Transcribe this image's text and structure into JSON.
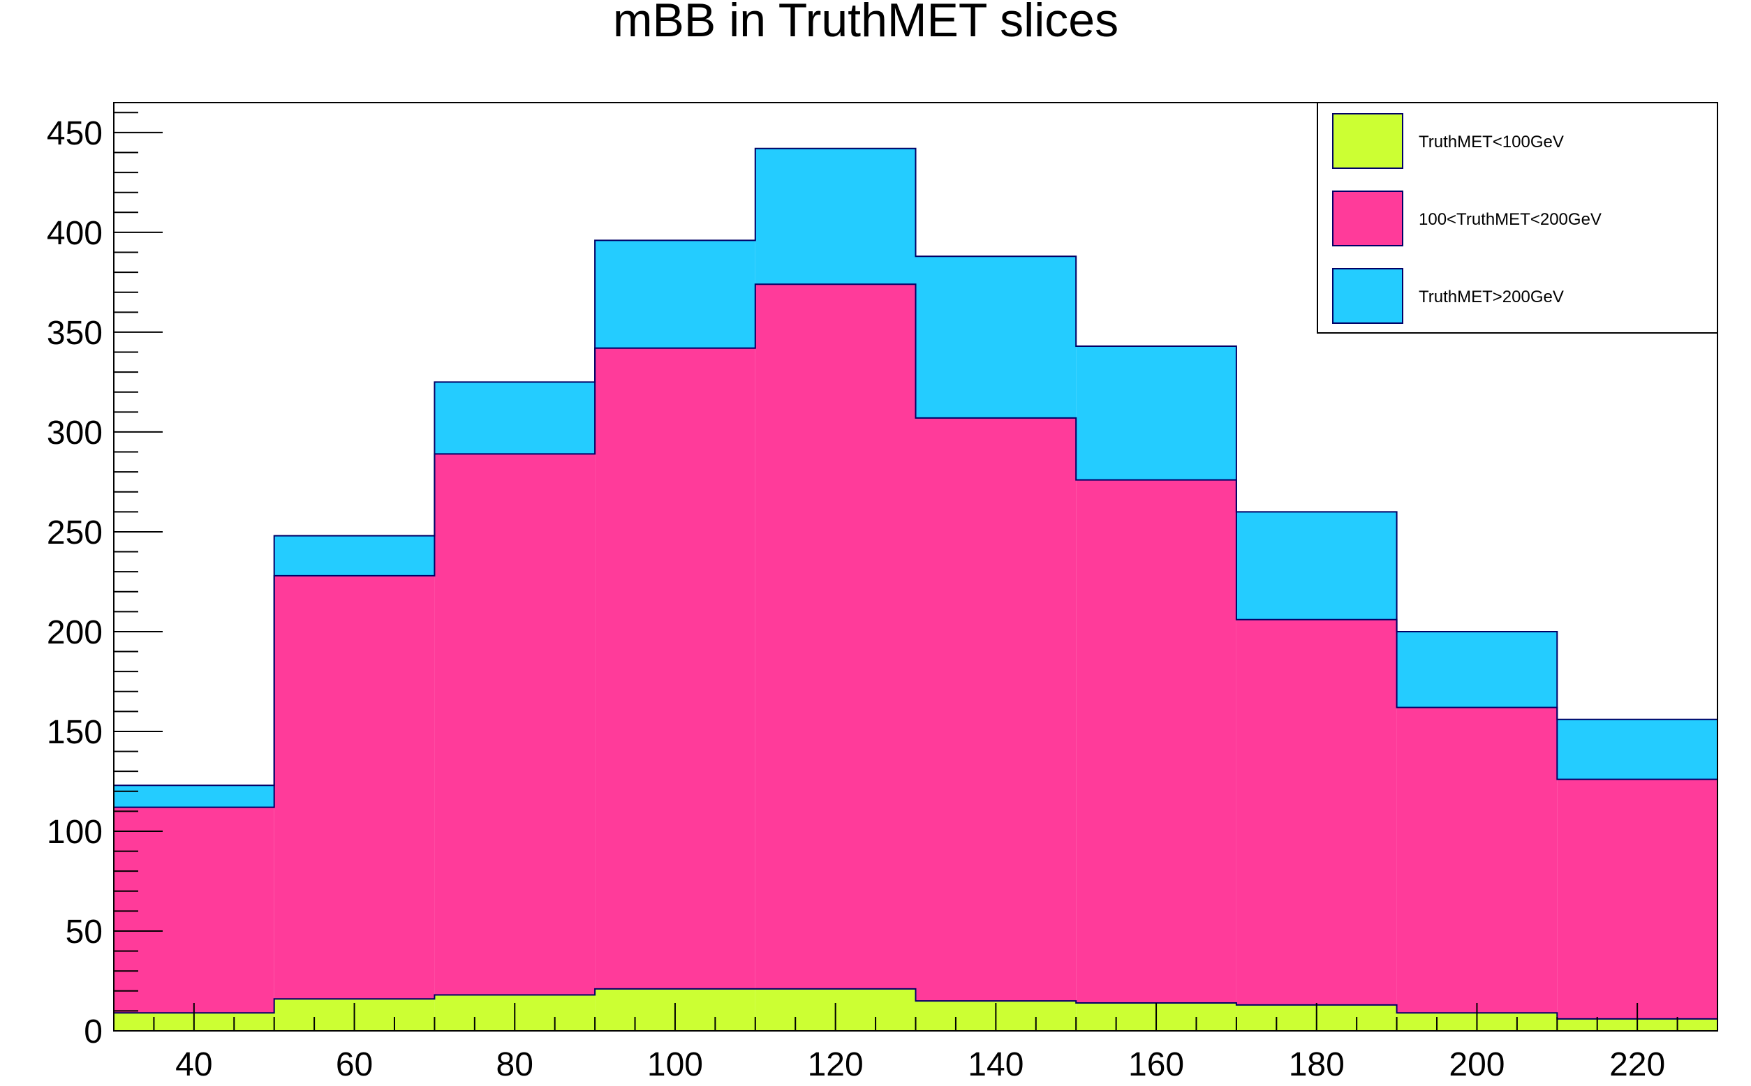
{
  "chart_data": {
    "type": "bar",
    "stacked": true,
    "title": "mBB in TruthMET slices",
    "xlabel": "",
    "ylabel": "",
    "bin_edges": [
      30,
      50,
      70,
      90,
      110,
      130,
      150,
      170,
      190,
      210,
      230
    ],
    "xlim": [
      30,
      230
    ],
    "ylim": [
      0,
      465
    ],
    "x_ticks": [
      40,
      60,
      80,
      100,
      120,
      140,
      160,
      180,
      200,
      220
    ],
    "y_ticks": [
      0,
      50,
      100,
      150,
      200,
      250,
      300,
      350,
      400,
      450
    ],
    "grid": false,
    "legend_position": "top-right",
    "series": [
      {
        "name": "TruthMET<100GeV",
        "color": "#ccff33",
        "values": [
          9,
          16,
          18,
          21,
          21,
          15,
          14,
          13,
          9,
          6
        ]
      },
      {
        "name": "100<TruthMET<200GeV",
        "color": "#ff3b9a",
        "values": [
          103,
          212,
          271,
          321,
          353,
          292,
          262,
          193,
          153,
          120
        ]
      },
      {
        "name": "TruthMET>200GeV",
        "color": "#24ccff",
        "values": [
          11,
          20,
          36,
          54,
          68,
          81,
          67,
          54,
          38,
          30
        ]
      }
    ]
  }
}
